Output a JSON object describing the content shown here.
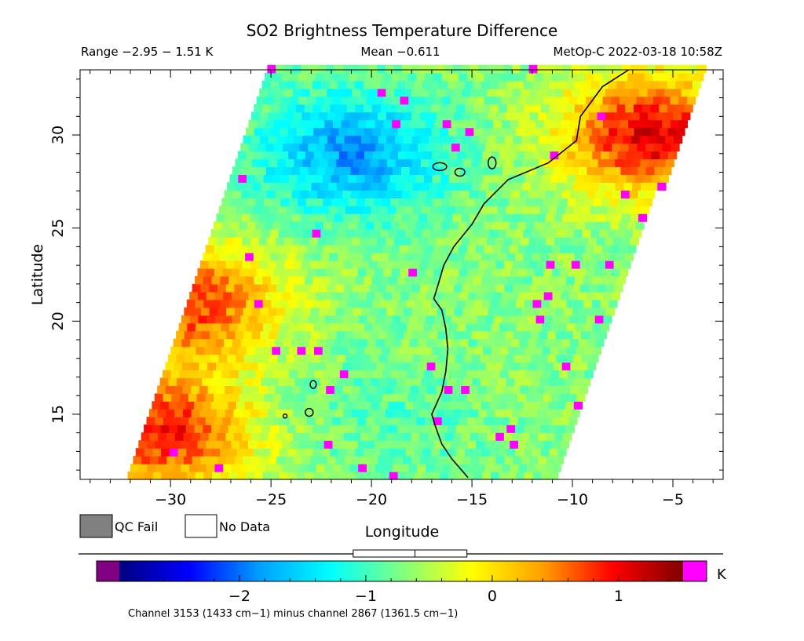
{
  "chart_data": {
    "type": "heatmap",
    "title": "SO2 Brightness Temperature Difference",
    "range_label": "Range −2.95 − 1.51 K",
    "mean_label": "Mean −0.611",
    "satellite_label": "MetOp-C 2022-03-18 10:58Z",
    "xlabel": "Longitude",
    "ylabel": "Latitude",
    "xlim": [
      -34.5,
      -2.5
    ],
    "ylim": [
      11.5,
      33.5
    ],
    "x_ticks": [
      -30,
      -25,
      -20,
      -15,
      -10,
      -5
    ],
    "x_tick_labels": [
      "−30",
      "−25",
      "−20",
      "−15",
      "−10",
      "−5"
    ],
    "y_ticks": [
      15,
      20,
      25,
      30
    ],
    "y_tick_labels": [
      "15",
      "20",
      "25",
      "30"
    ],
    "swath": {
      "bottom_left_lon": -32.2,
      "bottom_right_lon": -11.2,
      "top_left_lon": -25.2,
      "top_right_lon": -3.6
    },
    "regions": [
      {
        "name": "cold blue band north",
        "lon": -21,
        "lat": 29,
        "value": -1.8
      },
      {
        "name": "warm west lobe",
        "lon": -29,
        "lat": 21,
        "value": 0.75
      },
      {
        "name": "warm southwest corner",
        "lon": -30.5,
        "lat": 14,
        "value": 0.9
      },
      {
        "name": "hot northeast coast",
        "lon": -6,
        "lat": 30,
        "value": 1.1
      },
      {
        "name": "cyan southern swath",
        "lon": -19,
        "lat": 15,
        "value": -0.9
      }
    ],
    "legend": {
      "qc_fail_label": "QC Fail",
      "no_data_label": "No Data",
      "qc_fail_color": "#808080",
      "no_data_color": "#ffffff"
    },
    "colorbar": {
      "min": -2.95,
      "max": 1.51,
      "ticks": [
        -2,
        -1,
        0,
        1
      ],
      "tick_labels": [
        "−2",
        "−1",
        "0",
        "1"
      ],
      "unit": "K",
      "under_color": "#800080",
      "over_color": "#ff00ff",
      "colors": [
        "#000080",
        "#0000ff",
        "#00a0ff",
        "#00ffff",
        "#80ff80",
        "#ffff00",
        "#ffa000",
        "#ff0000",
        "#800000"
      ],
      "mean": -0.611,
      "box_range": [
        -1.1,
        -0.2
      ]
    },
    "footnote": "Channel 3153 (1433 cm−1) minus channel 2867 (1361.5 cm−1)"
  }
}
